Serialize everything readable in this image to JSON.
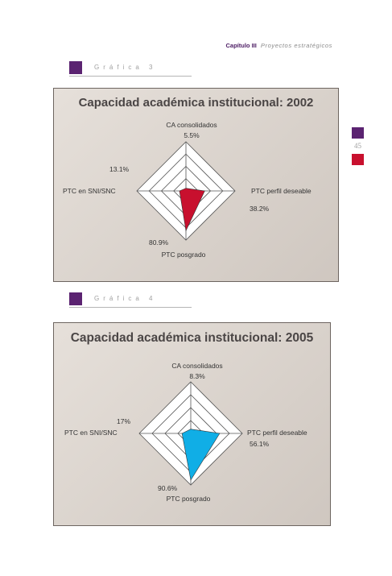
{
  "header": {
    "chapter": "Capítulo III",
    "subtitle": "Proyectos estratégicos"
  },
  "sections": [
    {
      "label": "Gráfica 3"
    },
    {
      "label": "Gráfica 4"
    }
  ],
  "page_number": "45",
  "colors": {
    "purple": "#5b2371",
    "red": "#c8102e",
    "cyan": "#10aee6"
  },
  "chart_data": [
    {
      "type": "radar",
      "title": "Capacidad académica institucional: 2002",
      "axes": [
        "CA consolidados",
        "PTC perfil deseable",
        "PTC posgrado",
        "PTC en SNI/SNC"
      ],
      "values": [
        5.5,
        38.2,
        80.9,
        13.1
      ],
      "value_labels": [
        "5.5%",
        "38.2%",
        "80.9%",
        "13.1%"
      ],
      "range": [
        0,
        100
      ],
      "rings": 4,
      "color": "#c8102e"
    },
    {
      "type": "radar",
      "title": "Capacidad académica institucional: 2005",
      "axes": [
        "CA consolidados",
        "PTC perfil deseable",
        "PTC posgrado",
        "PTC en SNI/SNC"
      ],
      "values": [
        8.3,
        56.1,
        90.6,
        17
      ],
      "value_labels": [
        "8.3%",
        "56.1%",
        "90.6%",
        "17%"
      ],
      "range": [
        0,
        100
      ],
      "rings": 4,
      "color": "#10aee6"
    }
  ]
}
